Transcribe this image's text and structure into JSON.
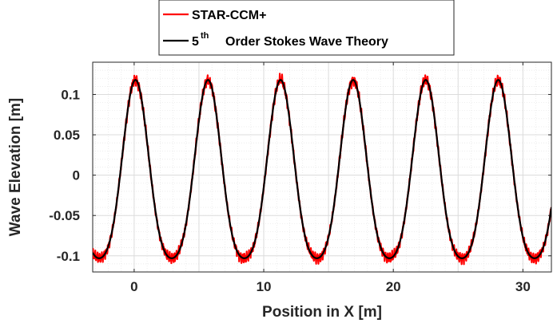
{
  "chart_data": {
    "type": "line",
    "xlabel": "Position in X [m]",
    "ylabel": "Wave Elevation [m]",
    "xlim": [
      -3.2,
      32.2
    ],
    "ylim": [
      -0.12,
      0.14
    ],
    "xticks": [
      0,
      10,
      20,
      30
    ],
    "xtick_labels": [
      "0",
      "10",
      "20",
      "30"
    ],
    "yticks": [
      0.1,
      0.05,
      0,
      -0.05,
      -0.1
    ],
    "ytick_labels": [
      "0.1",
      "0.05",
      "0",
      "-0.05",
      "-0.1"
    ],
    "grid": true,
    "minor_grid": true,
    "legend_position": "top-center",
    "wave": {
      "wavelength": 5.6,
      "crest_x": 0.1,
      "crest": 0.118,
      "trough": -0.103
    },
    "series": [
      {
        "name": "STAR-CCM+",
        "color": "#ff0000",
        "x": [
          -3.2,
          -2.8,
          -2.2,
          -1.4,
          -0.7,
          0.1,
          0.9,
          1.6,
          2.4,
          2.9,
          3.4,
          4.1,
          4.9,
          5.7,
          6.5,
          7.2,
          8.0,
          8.5,
          9.0,
          9.7,
          10.5,
          11.3,
          12.1,
          12.8,
          13.6,
          14.1,
          14.6,
          15.3,
          16.1,
          16.9,
          17.7,
          18.4,
          19.2,
          19.7,
          20.2,
          20.9,
          21.7,
          22.5,
          23.3,
          24.0,
          24.8,
          25.3,
          25.8,
          26.5,
          27.3,
          28.1,
          28.9,
          29.6,
          30.4,
          30.9,
          31.4,
          32.2
        ],
        "y": [
          -0.097,
          -0.101,
          -0.085,
          -0.035,
          0.045,
          0.117,
          0.045,
          -0.035,
          -0.092,
          -0.103,
          -0.092,
          -0.035,
          0.046,
          0.119,
          0.048,
          -0.03,
          -0.094,
          -0.103,
          -0.091,
          -0.034,
          0.047,
          0.12,
          0.046,
          -0.036,
          -0.095,
          -0.107,
          -0.095,
          -0.036,
          0.048,
          0.121,
          0.046,
          -0.031,
          -0.092,
          -0.104,
          -0.092,
          -0.034,
          0.046,
          0.116,
          0.046,
          -0.035,
          -0.093,
          -0.103,
          -0.092,
          -0.035,
          0.045,
          0.118,
          0.045,
          -0.035,
          -0.092,
          -0.103,
          -0.092,
          -0.033
        ]
      },
      {
        "name": "5th Order Stokes Wave Theory",
        "color": "#000000",
        "x": [
          -3.2,
          -2.8,
          -2.2,
          -1.4,
          -0.7,
          0.1,
          0.9,
          1.6,
          2.4,
          2.9,
          3.4,
          4.1,
          4.9,
          5.7,
          6.5,
          7.2,
          8.0,
          8.5,
          9.0,
          9.7,
          10.5,
          11.3,
          12.1,
          12.8,
          13.6,
          14.1,
          14.6,
          15.3,
          16.1,
          16.9,
          17.7,
          18.4,
          19.2,
          19.7,
          20.2,
          20.9,
          21.7,
          22.5,
          23.3,
          24.0,
          24.8,
          25.3,
          25.8,
          26.5,
          27.3,
          28.1,
          28.9,
          29.6,
          30.4,
          30.9,
          31.4,
          32.2
        ],
        "y": [
          -0.098,
          -0.103,
          -0.088,
          -0.035,
          0.045,
          0.118,
          0.045,
          -0.035,
          -0.092,
          -0.103,
          -0.092,
          -0.035,
          0.045,
          0.118,
          0.045,
          -0.035,
          -0.092,
          -0.103,
          -0.092,
          -0.035,
          0.045,
          0.118,
          0.045,
          -0.035,
          -0.092,
          -0.103,
          -0.092,
          -0.035,
          0.045,
          0.118,
          0.045,
          -0.035,
          -0.092,
          -0.103,
          -0.092,
          -0.035,
          0.045,
          0.118,
          0.045,
          -0.035,
          -0.092,
          -0.103,
          -0.092,
          -0.035,
          0.045,
          0.118,
          0.045,
          -0.035,
          -0.092,
          -0.103,
          -0.092,
          -0.035
        ]
      }
    ]
  },
  "legend": {
    "entries": [
      {
        "text": "STAR-CCM+"
      },
      {
        "prefix": "5",
        "superscript": "th",
        "text": "Order Stokes Wave Theory"
      }
    ]
  }
}
